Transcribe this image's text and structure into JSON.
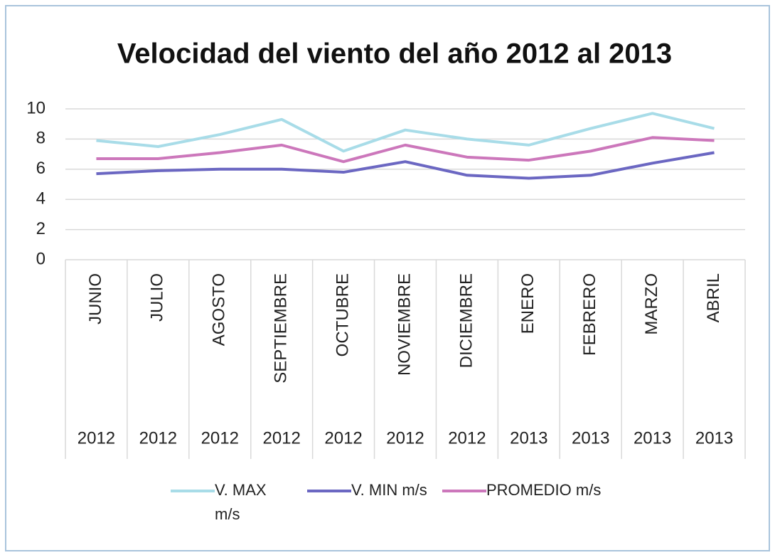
{
  "chart_data": {
    "type": "line",
    "title": "Velocidad del viento del año 2012 al 2013",
    "categories": [
      "JUNIO",
      "JULIO",
      "AGOSTO",
      "SEPTIEMBRE",
      "OCTUBRE",
      "NOVIEMBRE",
      "DICIEMBRE",
      "ENERO",
      "FEBRERO",
      "MARZO",
      "ABRIL"
    ],
    "years": [
      "2012",
      "2012",
      "2012",
      "2012",
      "2012",
      "2012",
      "2012",
      "2013",
      "2013",
      "2013",
      "2013"
    ],
    "series": [
      {
        "name": "V. MAX m/s",
        "color": "#a8dce8",
        "values": [
          7.9,
          7.5,
          8.3,
          9.3,
          7.2,
          8.6,
          8.0,
          7.6,
          8.7,
          9.7,
          8.7
        ]
      },
      {
        "name": "V. MIN m/s",
        "color": "#6b67c2",
        "values": [
          5.7,
          5.9,
          6.0,
          6.0,
          5.8,
          6.5,
          5.6,
          5.4,
          5.6,
          6.4,
          7.1
        ]
      },
      {
        "name": "PROMEDIO m/s",
        "color": "#cc77bb",
        "values": [
          6.7,
          6.7,
          7.1,
          7.6,
          6.5,
          7.6,
          6.8,
          6.6,
          7.2,
          8.1,
          7.9
        ]
      }
    ],
    "ylim": [
      0,
      10
    ],
    "yticks": [
      0,
      2,
      4,
      6,
      8,
      10
    ],
    "grid": true,
    "legend": "bottom"
  }
}
